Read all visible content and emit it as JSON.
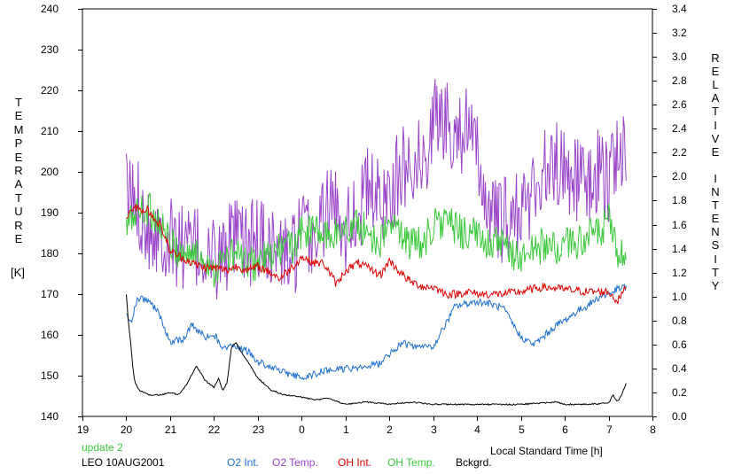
{
  "chart_data": {
    "type": "line",
    "xlabel": "Local Standard Time [h]",
    "y_left_label": "TEMPERATURE",
    "y_left_unit": "[K]",
    "y_right_label": "RELATIVE INTENSITY",
    "x_range": [
      19,
      32
    ],
    "x_ticks": [
      19,
      20,
      21,
      22,
      23,
      24,
      25,
      26,
      27,
      28,
      29,
      30,
      31,
      32
    ],
    "x_tick_labels": [
      "19",
      "20",
      "21",
      "22",
      "23",
      "0",
      "1",
      "2",
      "3",
      "4",
      "5",
      "6",
      "7",
      "8"
    ],
    "y_left_range": [
      140,
      240
    ],
    "y_left_ticks": [
      "140",
      "150",
      "160",
      "170",
      "180",
      "190",
      "200",
      "210",
      "220",
      "230",
      "240"
    ],
    "y_right_range": [
      0.0,
      3.4
    ],
    "y_right_ticks": [
      "0.0",
      "0.2",
      "0.4",
      "0.6",
      "0.8",
      "1.0",
      "1.2",
      "1.4",
      "1.6",
      "1.8",
      "2.0",
      "2.2",
      "2.4",
      "2.6",
      "2.8",
      "3.0",
      "3.2",
      "3.4"
    ],
    "grid": false,
    "legend_placement": "bottom",
    "annotations": {
      "update": "update 2",
      "station": "LEO 10AUG2001"
    },
    "series": [
      {
        "name": "O2 Int.",
        "color": "#1e6fd2",
        "axis": "right",
        "x": [
          20.0,
          20.1,
          20.25,
          20.5,
          20.75,
          21.0,
          21.3,
          21.5,
          21.8,
          22.0,
          22.2,
          22.5,
          22.8,
          23.0,
          23.3,
          23.5,
          24.0,
          24.5,
          25.0,
          25.3,
          25.5,
          25.8,
          26.0,
          26.3,
          26.5,
          27.0,
          27.3,
          27.5,
          28.0,
          28.3,
          28.6,
          28.8,
          29.0,
          29.3,
          29.5,
          29.8,
          30.0,
          30.3,
          30.5,
          30.8,
          31.0,
          31.2,
          31.4
        ],
        "y": [
          0.85,
          0.78,
          0.98,
          0.97,
          0.86,
          0.62,
          0.65,
          0.76,
          0.66,
          0.68,
          0.58,
          0.58,
          0.54,
          0.45,
          0.42,
          0.38,
          0.32,
          0.38,
          0.4,
          0.4,
          0.42,
          0.44,
          0.52,
          0.62,
          0.58,
          0.58,
          0.78,
          0.92,
          0.96,
          0.94,
          0.9,
          0.78,
          0.66,
          0.6,
          0.66,
          0.76,
          0.8,
          0.88,
          0.92,
          1.0,
          1.02,
          1.06,
          1.08
        ]
      },
      {
        "name": "O2 Temp.",
        "color": "#9a45c8",
        "axis": "left",
        "x": [
          20.0,
          20.3,
          20.5,
          20.8,
          21.0,
          21.3,
          21.5,
          21.8,
          22.0,
          22.3,
          22.5,
          22.8,
          23.0,
          23.3,
          23.5,
          23.8,
          24.0,
          24.3,
          24.5,
          24.8,
          25.0,
          25.3,
          25.5,
          25.8,
          26.0,
          26.3,
          26.5,
          26.8,
          27.0,
          27.3,
          27.5,
          27.8,
          28.0,
          28.3,
          28.5,
          28.8,
          29.0,
          29.3,
          29.5,
          29.8,
          30.0,
          30.3,
          30.5,
          30.8,
          31.0,
          31.2,
          31.4
        ],
        "y": [
          195,
          192,
          187,
          185,
          183,
          182,
          181,
          180,
          178,
          181,
          183,
          182,
          184,
          182,
          180,
          179,
          185,
          183,
          190,
          192,
          187,
          191,
          196,
          192,
          196,
          200,
          204,
          202,
          214,
          212,
          211,
          210,
          203,
          190,
          187,
          189,
          190,
          196,
          200,
          202,
          201,
          198,
          197,
          200,
          198,
          206,
          204
        ]
      },
      {
        "name": "OH Int.",
        "color": "#e00000",
        "axis": "right",
        "x": [
          20.0,
          20.2,
          20.5,
          20.8,
          21.0,
          21.3,
          21.5,
          21.8,
          22.0,
          22.3,
          22.5,
          22.8,
          23.0,
          23.3,
          23.5,
          23.8,
          24.0,
          24.3,
          24.5,
          24.8,
          25.0,
          25.3,
          25.5,
          25.8,
          26.0,
          26.3,
          26.5,
          26.8,
          27.0,
          27.3,
          27.5,
          27.8,
          28.0,
          28.5,
          29.0,
          29.5,
          30.0,
          30.5,
          31.0,
          31.2,
          31.4
        ],
        "y": [
          1.66,
          1.74,
          1.72,
          1.58,
          1.38,
          1.32,
          1.28,
          1.24,
          1.24,
          1.22,
          1.25,
          1.22,
          1.25,
          1.2,
          1.15,
          1.25,
          1.33,
          1.28,
          1.28,
          1.1,
          1.22,
          1.28,
          1.24,
          1.18,
          1.3,
          1.18,
          1.12,
          1.08,
          1.08,
          1.02,
          1.02,
          1.04,
          1.02,
          1.02,
          1.04,
          1.08,
          1.06,
          1.04,
          1.04,
          0.96,
          1.08
        ]
      },
      {
        "name": "OH Temp.",
        "color": "#3cc83c",
        "axis": "left",
        "x": [
          20.0,
          20.2,
          20.5,
          20.8,
          21.0,
          21.3,
          21.5,
          21.8,
          22.0,
          22.3,
          22.5,
          22.8,
          23.0,
          23.3,
          23.5,
          23.8,
          24.0,
          24.3,
          24.5,
          24.8,
          25.0,
          25.3,
          25.5,
          25.8,
          26.0,
          26.3,
          26.5,
          26.8,
          27.0,
          27.3,
          27.5,
          27.8,
          28.0,
          28.3,
          28.5,
          28.8,
          29.0,
          29.3,
          29.5,
          29.8,
          30.0,
          30.3,
          30.5,
          30.8,
          31.0,
          31.2,
          31.4
        ],
        "y": [
          186,
          190,
          191,
          187,
          182,
          180,
          180,
          179,
          176,
          179,
          180,
          177,
          178,
          179,
          181,
          182,
          185,
          186,
          184,
          185,
          186,
          187,
          185,
          183,
          187,
          185,
          182,
          183,
          187,
          188,
          186,
          185,
          184,
          183,
          182,
          180,
          179,
          181,
          182,
          181,
          182,
          183,
          184,
          185,
          188,
          180,
          178
        ]
      },
      {
        "name": "Bckgrd.",
        "color": "#000000",
        "axis": "right",
        "x": [
          20.0,
          20.05,
          20.1,
          20.15,
          20.2,
          20.3,
          20.5,
          20.8,
          21.0,
          21.2,
          21.4,
          21.6,
          21.8,
          22.0,
          22.1,
          22.2,
          22.3,
          22.4,
          22.5,
          22.6,
          22.8,
          23.0,
          23.3,
          23.6,
          24.0,
          24.3,
          24.6,
          25.0,
          25.5,
          26.0,
          26.5,
          27.0,
          28.0,
          29.0,
          29.8,
          30.0,
          30.5,
          31.0,
          31.1,
          31.2,
          31.3,
          31.4
        ],
        "y": [
          1.02,
          0.78,
          0.62,
          0.4,
          0.28,
          0.22,
          0.18,
          0.18,
          0.2,
          0.18,
          0.28,
          0.42,
          0.3,
          0.24,
          0.32,
          0.22,
          0.28,
          0.58,
          0.62,
          0.55,
          0.44,
          0.32,
          0.22,
          0.18,
          0.16,
          0.14,
          0.15,
          0.1,
          0.12,
          0.1,
          0.12,
          0.1,
          0.1,
          0.1,
          0.12,
          0.1,
          0.1,
          0.11,
          0.18,
          0.12,
          0.18,
          0.28
        ]
      }
    ]
  }
}
